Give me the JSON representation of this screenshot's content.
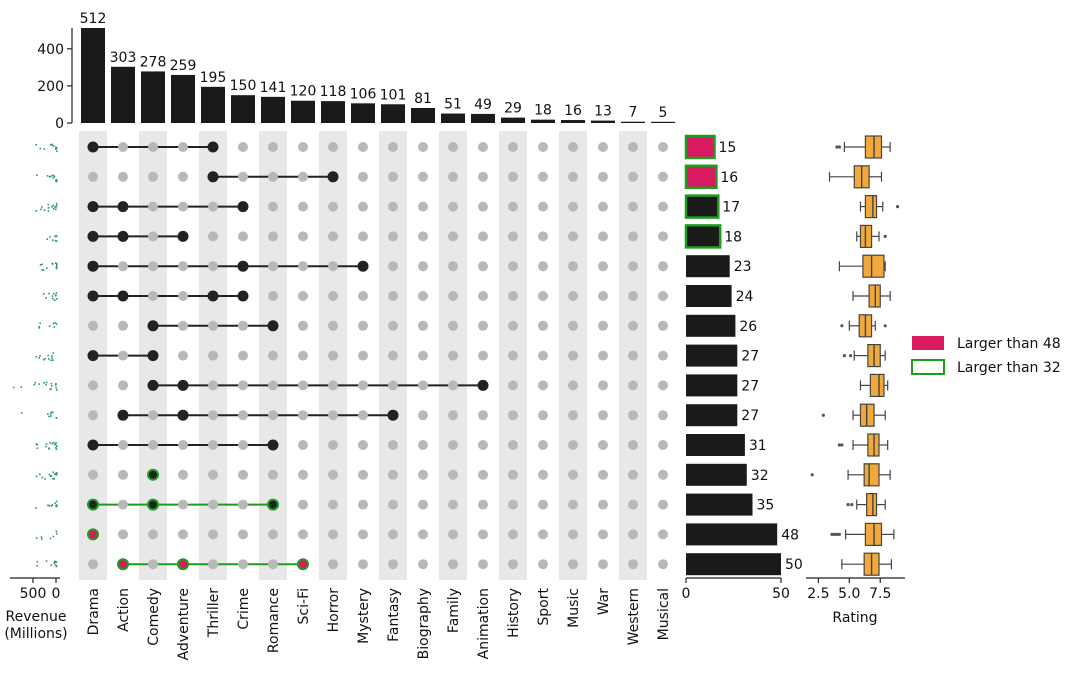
{
  "chart_data": {
    "type": "upset",
    "genres": [
      "Drama",
      "Action",
      "Comedy",
      "Adventure",
      "Thriller",
      "Crime",
      "Romance",
      "Sci-Fi",
      "Horror",
      "Mystery",
      "Fantasy",
      "Biography",
      "Family",
      "Animation",
      "History",
      "Sport",
      "Music",
      "War",
      "Western",
      "Musical"
    ],
    "genre_totals": [
      512,
      303,
      278,
      259,
      195,
      150,
      141,
      120,
      118,
      106,
      101,
      81,
      51,
      49,
      29,
      18,
      16,
      13,
      7,
      5
    ],
    "genre_totals_axis": {
      "ticks": [
        "0",
        "200",
        "400"
      ],
      "range": [
        0,
        512
      ]
    },
    "intersections": [
      {
        "members": [
          "Drama",
          "Thriller"
        ],
        "size": 15,
        "highlight": "red"
      },
      {
        "members": [
          "Thriller",
          "Horror"
        ],
        "size": 16,
        "highlight": "red"
      },
      {
        "members": [
          "Drama",
          "Action",
          "Crime"
        ],
        "size": 17,
        "highlight": "green"
      },
      {
        "members": [
          "Drama",
          "Action",
          "Adventure"
        ],
        "size": 18,
        "highlight": "green"
      },
      {
        "members": [
          "Drama",
          "Crime",
          "Mystery"
        ],
        "size": 23,
        "highlight": "none"
      },
      {
        "members": [
          "Drama",
          "Action",
          "Thriller",
          "Crime"
        ],
        "size": 24,
        "highlight": "none"
      },
      {
        "members": [
          "Comedy",
          "Romance"
        ],
        "size": 26,
        "highlight": "none"
      },
      {
        "members": [
          "Drama",
          "Comedy"
        ],
        "size": 27,
        "highlight": "none"
      },
      {
        "members": [
          "Comedy",
          "Adventure",
          "Animation"
        ],
        "size": 27,
        "highlight": "none"
      },
      {
        "members": [
          "Action",
          "Adventure",
          "Fantasy"
        ],
        "size": 27,
        "highlight": "none"
      },
      {
        "members": [
          "Drama",
          "Romance"
        ],
        "size": 31,
        "highlight": "none"
      },
      {
        "members": [
          "Comedy"
        ],
        "size": 32,
        "highlight": "green_dot"
      },
      {
        "members": [
          "Drama",
          "Comedy",
          "Romance"
        ],
        "size": 35,
        "highlight": "green_dot"
      },
      {
        "members": [
          "Drama"
        ],
        "size": 48,
        "highlight": "red_dot"
      },
      {
        "members": [
          "Action",
          "Adventure",
          "Sci-Fi"
        ],
        "size": 50,
        "highlight": "red_dot"
      }
    ],
    "intersection_axis": {
      "ticks": [
        "0",
        "50"
      ],
      "range": [
        0,
        50
      ]
    },
    "revenue_axis": {
      "label": "Revenue\n(Millions)",
      "ticks": [
        "500",
        "0"
      ]
    },
    "rating_axis": {
      "label": "Rating",
      "ticks": [
        "2.5",
        "5.0",
        "7.5"
      ],
      "range": [
        1.5,
        9.5
      ]
    },
    "rating_boxes": [
      {
        "wlo": 4.6,
        "q1": 6.3,
        "med": 7.0,
        "q3": 7.6,
        "whi": 8.3,
        "outliers": [
          4.0,
          4.2
        ]
      },
      {
        "wlo": 3.4,
        "q1": 5.4,
        "med": 6.0,
        "q3": 6.6,
        "whi": 7.6,
        "outliers": []
      },
      {
        "wlo": 5.9,
        "q1": 6.3,
        "med": 6.9,
        "q3": 7.2,
        "whi": 7.7,
        "outliers": [
          8.9
        ]
      },
      {
        "wlo": 5.6,
        "q1": 5.9,
        "med": 6.3,
        "q3": 6.8,
        "whi": 7.4,
        "outliers": [
          7.9
        ]
      },
      {
        "wlo": 4.2,
        "q1": 6.1,
        "med": 6.8,
        "q3": 7.8,
        "whi": 7.9,
        "outliers": []
      },
      {
        "wlo": 5.3,
        "q1": 6.6,
        "med": 7.1,
        "q3": 7.5,
        "whi": 8.3,
        "outliers": []
      },
      {
        "wlo": 5.0,
        "q1": 5.8,
        "med": 6.3,
        "q3": 6.8,
        "whi": 7.1,
        "outliers": [
          4.4,
          7.9
        ]
      },
      {
        "wlo": 5.4,
        "q1": 6.5,
        "med": 7.0,
        "q3": 7.5,
        "whi": 7.9,
        "outliers": [
          4.6,
          5.1
        ]
      },
      {
        "wlo": 5.9,
        "q1": 6.7,
        "med": 7.4,
        "q3": 7.8,
        "whi": 8.1,
        "outliers": []
      },
      {
        "wlo": 5.3,
        "q1": 5.9,
        "med": 6.4,
        "q3": 7.0,
        "whi": 7.9,
        "outliers": [
          2.9
        ]
      },
      {
        "wlo": 5.3,
        "q1": 6.5,
        "med": 7.0,
        "q3": 7.4,
        "whi": 8.1,
        "outliers": [
          4.2,
          4.4
        ]
      },
      {
        "wlo": 4.9,
        "q1": 6.2,
        "med": 6.6,
        "q3": 7.4,
        "whi": 8.3,
        "outliers": [
          2.0
        ]
      },
      {
        "wlo": 5.6,
        "q1": 6.4,
        "med": 6.9,
        "q3": 7.2,
        "whi": 7.9,
        "outliers": [
          4.9,
          5.2
        ]
      },
      {
        "wlo": 4.7,
        "q1": 6.3,
        "med": 7.0,
        "q3": 7.6,
        "whi": 8.6,
        "outliers": [
          3.6,
          3.8,
          4.0,
          4.2
        ]
      },
      {
        "wlo": 4.4,
        "q1": 6.2,
        "med": 6.8,
        "q3": 7.4,
        "whi": 8.4,
        "outliers": []
      }
    ],
    "legend": [
      {
        "label": "Larger than 48",
        "style": "filled",
        "color": "#d81b60"
      },
      {
        "label": "Larger than 32",
        "style": "outline",
        "color": "#1e9c1e"
      }
    ],
    "legend_position": "right"
  },
  "colors": {
    "bar": "#1a1a1a",
    "red": "#d81b60",
    "green": "#1e9c1e",
    "box": "#f2a93b",
    "stripe": "#e8e8e8",
    "dot_inactive": "#b8b8b8",
    "revenue_points": "#2e9470"
  }
}
